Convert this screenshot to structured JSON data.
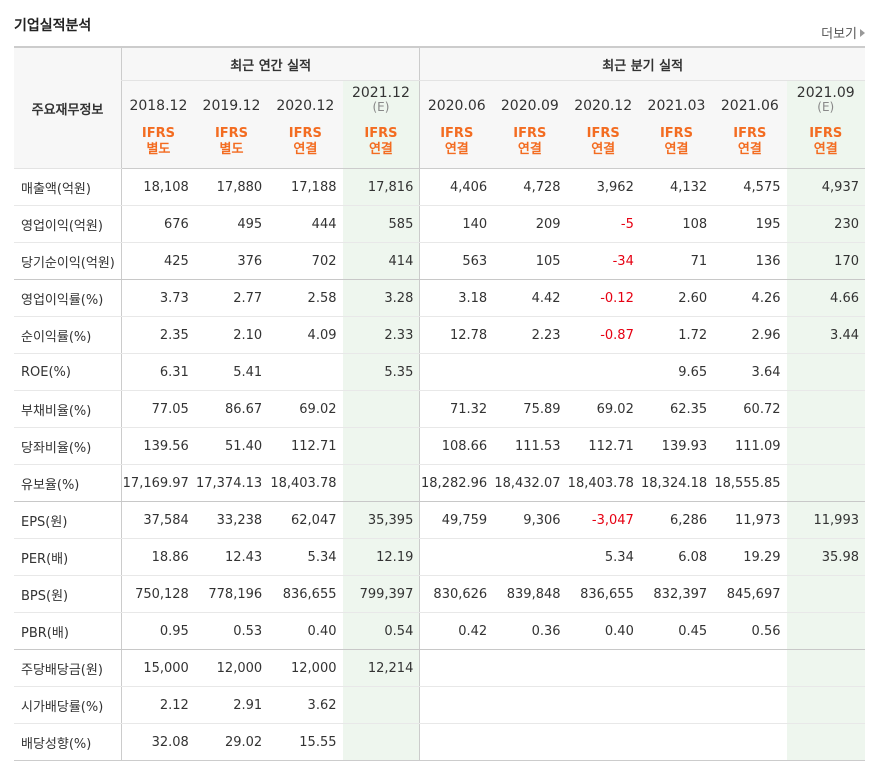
{
  "title": "기업실적분석",
  "more_label": "더보기",
  "main_header": "주요재무정보",
  "annual_group": "최근 연간 실적",
  "quarter_group": "최근 분기 실적",
  "periods": [
    {
      "date": "2018.12",
      "est": "",
      "std1": "IFRS",
      "std2": "별도",
      "is_est": false
    },
    {
      "date": "2019.12",
      "est": "",
      "std1": "IFRS",
      "std2": "별도",
      "is_est": false
    },
    {
      "date": "2020.12",
      "est": "",
      "std1": "IFRS",
      "std2": "연결",
      "is_est": false
    },
    {
      "date": "2021.12",
      "est": "(E)",
      "std1": "IFRS",
      "std2": "연결",
      "is_est": true
    },
    {
      "date": "2020.06",
      "est": "",
      "std1": "IFRS",
      "std2": "연결",
      "is_est": false
    },
    {
      "date": "2020.09",
      "est": "",
      "std1": "IFRS",
      "std2": "연결",
      "is_est": false
    },
    {
      "date": "2020.12",
      "est": "",
      "std1": "IFRS",
      "std2": "연결",
      "is_est": false
    },
    {
      "date": "2021.03",
      "est": "",
      "std1": "IFRS",
      "std2": "연결",
      "is_est": false
    },
    {
      "date": "2021.06",
      "est": "",
      "std1": "IFRS",
      "std2": "연결",
      "is_est": false
    },
    {
      "date": "2021.09",
      "est": "(E)",
      "std1": "IFRS",
      "std2": "연결",
      "is_est": true
    }
  ],
  "rows": [
    {
      "label": "매출액(억원)",
      "values": [
        "18,108",
        "17,880",
        "17,188",
        "17,816",
        "4,406",
        "4,728",
        "3,962",
        "4,132",
        "4,575",
        "4,937"
      ]
    },
    {
      "label": "영업이익(억원)",
      "values": [
        "676",
        "495",
        "444",
        "585",
        "140",
        "209",
        "-5",
        "108",
        "195",
        "230"
      ]
    },
    {
      "label": "당기순이익(억원)",
      "values": [
        "425",
        "376",
        "702",
        "414",
        "563",
        "105",
        "-34",
        "71",
        "136",
        "170"
      ]
    },
    {
      "label": "영업이익률(%)",
      "values": [
        "3.73",
        "2.77",
        "2.58",
        "3.28",
        "3.18",
        "4.42",
        "-0.12",
        "2.60",
        "4.26",
        "4.66"
      ]
    },
    {
      "label": "순이익률(%)",
      "values": [
        "2.35",
        "2.10",
        "4.09",
        "2.33",
        "12.78",
        "2.23",
        "-0.87",
        "1.72",
        "2.96",
        "3.44"
      ]
    },
    {
      "label": "ROE(%)",
      "values": [
        "6.31",
        "5.41",
        "",
        "5.35",
        "",
        "",
        "",
        "9.65",
        "3.64",
        ""
      ]
    },
    {
      "label": "부채비율(%)",
      "values": [
        "77.05",
        "86.67",
        "69.02",
        "",
        "71.32",
        "75.89",
        "69.02",
        "62.35",
        "60.72",
        ""
      ]
    },
    {
      "label": "당좌비율(%)",
      "values": [
        "139.56",
        "51.40",
        "112.71",
        "",
        "108.66",
        "111.53",
        "112.71",
        "139.93",
        "111.09",
        ""
      ]
    },
    {
      "label": "유보율(%)",
      "values": [
        "17,169.97",
        "17,374.13",
        "18,403.78",
        "",
        "18,282.96",
        "18,432.07",
        "18,403.78",
        "18,324.18",
        "18,555.85",
        ""
      ]
    },
    {
      "label": "EPS(원)",
      "values": [
        "37,584",
        "33,238",
        "62,047",
        "35,395",
        "49,759",
        "9,306",
        "-3,047",
        "6,286",
        "11,973",
        "11,993"
      ]
    },
    {
      "label": "PER(배)",
      "values": [
        "18.86",
        "12.43",
        "5.34",
        "12.19",
        "",
        "",
        "5.34",
        "6.08",
        "19.29",
        "35.98"
      ]
    },
    {
      "label": "BPS(원)",
      "values": [
        "750,128",
        "778,196",
        "836,655",
        "799,397",
        "830,626",
        "839,848",
        "836,655",
        "832,397",
        "845,697",
        ""
      ]
    },
    {
      "label": "PBR(배)",
      "values": [
        "0.95",
        "0.53",
        "0.40",
        "0.54",
        "0.42",
        "0.36",
        "0.40",
        "0.45",
        "0.56",
        ""
      ]
    },
    {
      "label": "주당배당금(원)",
      "values": [
        "15,000",
        "12,000",
        "12,000",
        "12,214",
        "",
        "",
        "",
        "",
        "",
        ""
      ]
    },
    {
      "label": "시가배당률(%)",
      "values": [
        "2.12",
        "2.91",
        "3.62",
        "",
        "",
        "",
        "",
        "",
        "",
        ""
      ]
    },
    {
      "label": "배당성향(%)",
      "values": [
        "32.08",
        "29.02",
        "15.55",
        "",
        "",
        "",
        "",
        "",
        "",
        ""
      ]
    }
  ],
  "colors": {
    "accent": "#f36c21",
    "negative": "#e60012",
    "estimate_bg": "#eef6ee",
    "header_bg": "#f7f7f7"
  }
}
